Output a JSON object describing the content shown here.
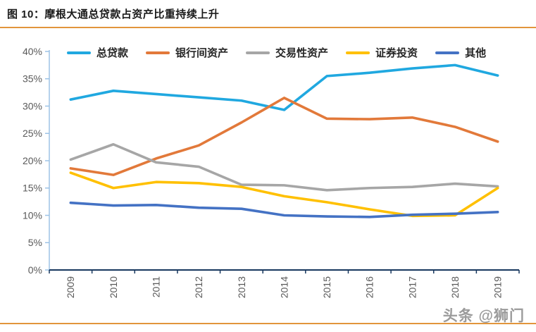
{
  "page": {
    "figure_label": "图 10：摩根大通总贷款占资产比重持续上升",
    "watermark": "头条 @狮门",
    "accent_color": "#E2953C"
  },
  "chart_data": {
    "type": "line",
    "title": "摩根大通总贷款占资产比重持续上升",
    "x": [
      "2009",
      "2010",
      "2011",
      "2012",
      "2013",
      "2014",
      "2015",
      "2016",
      "2017",
      "2018",
      "2019"
    ],
    "ylim": [
      0,
      40
    ],
    "y_tick_step": 5,
    "y_tick_suffix": "%",
    "grid": false,
    "legend_position": "top",
    "series": [
      {
        "name": "总贷款",
        "color": "#20A8E0",
        "values": [
          31.2,
          32.8,
          32.2,
          31.6,
          31.0,
          29.3,
          35.5,
          36.1,
          36.9,
          37.5,
          35.6
        ]
      },
      {
        "name": "银行间资产",
        "color": "#E2793A",
        "values": [
          18.6,
          17.4,
          20.4,
          22.8,
          27.0,
          31.5,
          27.7,
          27.6,
          27.9,
          26.2,
          23.5
        ]
      },
      {
        "name": "交易性资产",
        "color": "#A6A6A6",
        "values": [
          20.2,
          23.0,
          19.7,
          18.9,
          15.6,
          15.5,
          14.6,
          15.0,
          15.2,
          15.8,
          15.3
        ]
      },
      {
        "name": "证券投资",
        "color": "#FFC000",
        "values": [
          17.8,
          15.0,
          16.1,
          15.9,
          15.2,
          13.5,
          12.4,
          11.1,
          9.9,
          10.0,
          15.0
        ]
      },
      {
        "name": "其他",
        "color": "#4472C4",
        "values": [
          12.3,
          11.8,
          11.9,
          11.4,
          11.2,
          10.0,
          9.8,
          9.7,
          10.1,
          10.3,
          10.6
        ]
      }
    ],
    "axis_style": {
      "y_axis_color": "#9DC3E6",
      "x_axis_color": "#17375E",
      "tick_label_color": "#595959"
    }
  }
}
